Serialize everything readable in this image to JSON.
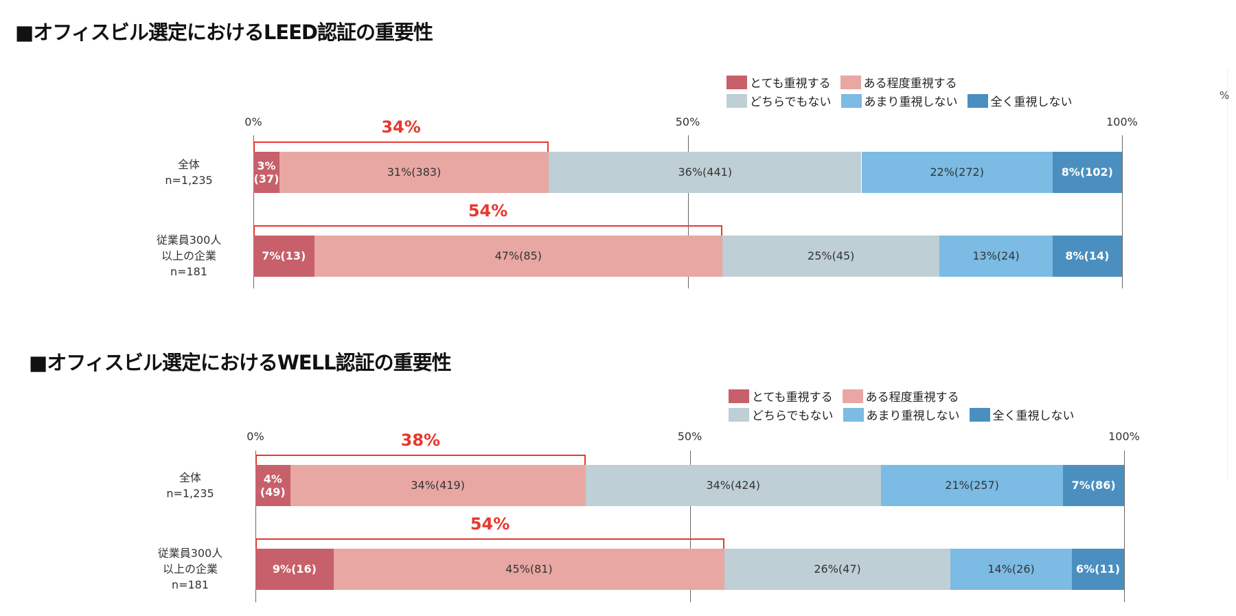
{
  "unit_label": "%",
  "colors": [
    "#c7606a",
    "#e8a7a3",
    "#becfd5",
    "#7bbbe4",
    "#4b8fc0"
  ],
  "bracket_color": "#e8372c",
  "chart_data": [
    {
      "type": "bar",
      "stacked": true,
      "orientation": "horizontal",
      "title": "■オフィスビル選定におけるLEED認証の重要性",
      "legend": [
        "とても重視する",
        "ある程度重視する",
        "どちらでもない",
        "あまり重視しない",
        "全く重視しない"
      ],
      "legend_placement": "top-right",
      "ticks": [
        "0%",
        "50%",
        "100%"
      ],
      "xlim": [
        0,
        100
      ],
      "categories": [
        {
          "lines": [
            "全体",
            "n=1,235"
          ]
        },
        {
          "lines": [
            "従業員300人",
            "以上の企業",
            "n=181"
          ]
        }
      ],
      "series_values": [
        {
          "pct": [
            3,
            31,
            36,
            22,
            8
          ],
          "counts": [
            37,
            383,
            441,
            272,
            102
          ],
          "highlight": 34,
          "highlight_label": "34%"
        },
        {
          "pct": [
            7,
            47,
            25,
            13,
            8
          ],
          "counts": [
            13,
            85,
            45,
            24,
            14
          ],
          "highlight": 54,
          "highlight_label": "54%"
        }
      ]
    },
    {
      "type": "bar",
      "stacked": true,
      "orientation": "horizontal",
      "title": "■オフィスビル選定におけるWELL認証の重要性",
      "legend": [
        "とても重視する",
        "ある程度重視する",
        "どちらでもない",
        "あまり重視しない",
        "全く重視しない"
      ],
      "legend_placement": "top-right",
      "ticks": [
        "0%",
        "50%",
        "100%"
      ],
      "xlim": [
        0,
        100
      ],
      "categories": [
        {
          "lines": [
            "全体",
            "n=1,235"
          ]
        },
        {
          "lines": [
            "従業員300人",
            "以上の企業",
            "n=181"
          ]
        }
      ],
      "series_values": [
        {
          "pct": [
            4,
            34,
            34,
            21,
            7
          ],
          "counts": [
            49,
            419,
            424,
            257,
            86
          ],
          "highlight": 38,
          "highlight_label": "38%"
        },
        {
          "pct": [
            9,
            45,
            26,
            14,
            6
          ],
          "counts": [
            16,
            81,
            47,
            26,
            11
          ],
          "highlight": 54,
          "highlight_label": "54%"
        }
      ]
    }
  ]
}
